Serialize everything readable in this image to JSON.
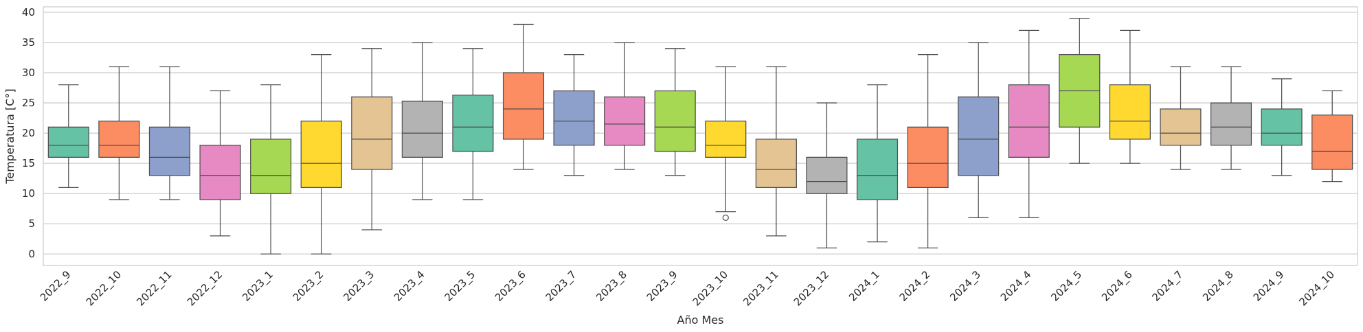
{
  "chart_data": {
    "type": "box",
    "xlabel": "Año Mes",
    "ylabel": "Temperatura [C°]",
    "ylim": [
      -1.9,
      40.9
    ],
    "yticks": [
      0,
      5,
      10,
      15,
      20,
      25,
      30,
      35,
      40
    ],
    "grid": "horizontal",
    "palette": [
      "#66c2a5",
      "#fc8d62",
      "#8da0cb",
      "#e78ac3",
      "#a6d854",
      "#ffd92f",
      "#e5c494",
      "#b3b3b3"
    ],
    "boxes": [
      {
        "label": "2022_9",
        "whisker_low": 11,
        "q1": 16,
        "median": 18,
        "q3": 21,
        "whisker_high": 28,
        "outliers": []
      },
      {
        "label": "2022_10",
        "whisker_low": 9,
        "q1": 16,
        "median": 18,
        "q3": 22,
        "whisker_high": 31,
        "outliers": []
      },
      {
        "label": "2022_11",
        "whisker_low": 9,
        "q1": 13,
        "median": 16,
        "q3": 21,
        "whisker_high": 31,
        "outliers": []
      },
      {
        "label": "2022_12",
        "whisker_low": 3,
        "q1": 9,
        "median": 13,
        "q3": 18,
        "whisker_high": 27,
        "outliers": []
      },
      {
        "label": "2023_1",
        "whisker_low": 0,
        "q1": 10,
        "median": 13,
        "q3": 19,
        "whisker_high": 28,
        "outliers": []
      },
      {
        "label": "2023_2",
        "whisker_low": 0,
        "q1": 11,
        "median": 15,
        "q3": 22,
        "whisker_high": 33,
        "outliers": []
      },
      {
        "label": "2023_3",
        "whisker_low": 4,
        "q1": 14,
        "median": 19,
        "q3": 26,
        "whisker_high": 34,
        "outliers": []
      },
      {
        "label": "2023_4",
        "whisker_low": 9,
        "q1": 16,
        "median": 20,
        "q3": 25.3,
        "whisker_high": 35,
        "outliers": []
      },
      {
        "label": "2023_5",
        "whisker_low": 9,
        "q1": 17,
        "median": 21,
        "q3": 26.3,
        "whisker_high": 34,
        "outliers": []
      },
      {
        "label": "2023_6",
        "whisker_low": 14,
        "q1": 19,
        "median": 24,
        "q3": 30,
        "whisker_high": 38,
        "outliers": []
      },
      {
        "label": "2023_7",
        "whisker_low": 13,
        "q1": 18,
        "median": 22,
        "q3": 27,
        "whisker_high": 33,
        "outliers": []
      },
      {
        "label": "2023_8",
        "whisker_low": 14,
        "q1": 18,
        "median": 21.5,
        "q3": 26,
        "whisker_high": 35,
        "outliers": []
      },
      {
        "label": "2023_9",
        "whisker_low": 13,
        "q1": 17,
        "median": 21,
        "q3": 27,
        "whisker_high": 34,
        "outliers": []
      },
      {
        "label": "2023_10",
        "whisker_low": 7,
        "q1": 16,
        "median": 18,
        "q3": 22,
        "whisker_high": 31,
        "outliers": [
          6
        ]
      },
      {
        "label": "2023_11",
        "whisker_low": 3,
        "q1": 11,
        "median": 14,
        "q3": 19,
        "whisker_high": 31,
        "outliers": []
      },
      {
        "label": "2023_12",
        "whisker_low": 1,
        "q1": 10,
        "median": 12,
        "q3": 16,
        "whisker_high": 25,
        "outliers": []
      },
      {
        "label": "2024_1",
        "whisker_low": 2,
        "q1": 9,
        "median": 13,
        "q3": 19,
        "whisker_high": 28,
        "outliers": []
      },
      {
        "label": "2024_2",
        "whisker_low": 1,
        "q1": 11,
        "median": 15,
        "q3": 21,
        "whisker_high": 33,
        "outliers": []
      },
      {
        "label": "2024_3",
        "whisker_low": 6,
        "q1": 13,
        "median": 19,
        "q3": 26,
        "whisker_high": 35,
        "outliers": []
      },
      {
        "label": "2024_4",
        "whisker_low": 6,
        "q1": 16,
        "median": 21,
        "q3": 28,
        "whisker_high": 37,
        "outliers": []
      },
      {
        "label": "2024_5",
        "whisker_low": 15,
        "q1": 21,
        "median": 27,
        "q3": 33,
        "whisker_high": 39,
        "outliers": []
      },
      {
        "label": "2024_6",
        "whisker_low": 15,
        "q1": 19,
        "median": 22,
        "q3": 28,
        "whisker_high": 37,
        "outliers": []
      },
      {
        "label": "2024_7",
        "whisker_low": 14,
        "q1": 18,
        "median": 20,
        "q3": 24,
        "whisker_high": 31,
        "outliers": []
      },
      {
        "label": "2024_8",
        "whisker_low": 14,
        "q1": 18,
        "median": 21,
        "q3": 25,
        "whisker_high": 31,
        "outliers": []
      },
      {
        "label": "2024_9",
        "whisker_low": 13,
        "q1": 18,
        "median": 20,
        "q3": 24,
        "whisker_high": 29,
        "outliers": []
      },
      {
        "label": "2024_10",
        "whisker_low": 12,
        "q1": 14,
        "median": 17,
        "q3": 23,
        "whisker_high": 27,
        "outliers": []
      }
    ]
  }
}
